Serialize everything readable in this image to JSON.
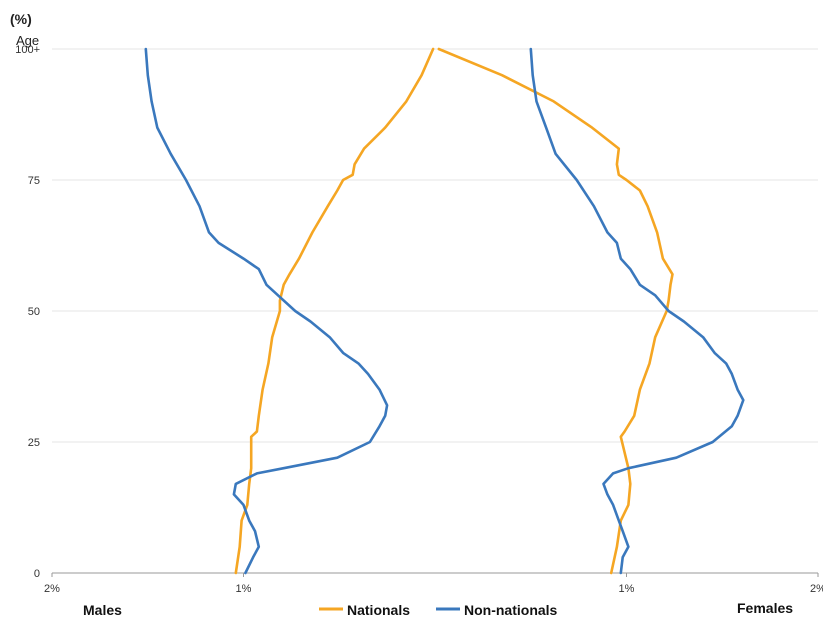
{
  "chart_data": {
    "type": "line",
    "subtype": "population-pyramid",
    "unit_label": "(%)",
    "ylabel": "Age",
    "side_labels": {
      "left": "Males",
      "right": "Females"
    },
    "y_ticks": [
      {
        "value": 0,
        "label": "0"
      },
      {
        "value": 25,
        "label": "25"
      },
      {
        "value": 50,
        "label": "50"
      },
      {
        "value": 75,
        "label": "75"
      },
      {
        "value": 100,
        "label": "100+"
      }
    ],
    "x_ticks": [
      {
        "value": -2,
        "label": "2%"
      },
      {
        "value": -1,
        "label": "1%"
      },
      {
        "value": 1,
        "label": "1%"
      },
      {
        "value": 2,
        "label": "2%"
      }
    ],
    "xlim": [
      -2,
      2
    ],
    "ylim": [
      0,
      100
    ],
    "grid": true,
    "legend_position": "bottom-center",
    "series": [
      {
        "name": "Nationals",
        "color": "#F5A623",
        "ages": [
          0,
          5,
          10,
          13,
          17,
          20,
          26,
          27,
          30,
          35,
          40,
          45,
          50,
          52,
          55,
          57,
          60,
          65,
          70,
          73,
          75,
          76,
          78,
          81,
          85,
          90,
          95,
          100
        ],
        "male": [
          1.04,
          1.02,
          1.01,
          0.98,
          0.97,
          0.96,
          0.96,
          0.93,
          0.92,
          0.9,
          0.87,
          0.85,
          0.81,
          0.81,
          0.79,
          0.76,
          0.71,
          0.64,
          0.56,
          0.51,
          0.48,
          0.43,
          0.42,
          0.37,
          0.26,
          0.15,
          0.07,
          0.01
        ],
        "female": [
          0.92,
          0.95,
          0.97,
          1.01,
          1.02,
          1.01,
          0.97,
          0.99,
          1.04,
          1.07,
          1.12,
          1.15,
          1.21,
          1.22,
          1.23,
          1.24,
          1.19,
          1.16,
          1.11,
          1.07,
          1.0,
          0.96,
          0.95,
          0.96,
          0.82,
          0.62,
          0.35,
          0.02
        ]
      },
      {
        "name": "Non-nationals",
        "color": "#3A78BD",
        "ages": [
          0,
          3,
          5,
          8,
          10,
          13,
          15,
          17,
          19,
          20,
          22,
          25,
          28,
          30,
          32,
          35,
          38,
          40,
          42,
          45,
          48,
          50,
          53,
          55,
          58,
          60,
          63,
          65,
          70,
          75,
          80,
          85,
          90,
          95,
          100
        ],
        "male": [
          0.99,
          0.95,
          0.92,
          0.94,
          0.97,
          1.0,
          1.05,
          1.04,
          0.93,
          0.79,
          0.51,
          0.34,
          0.29,
          0.26,
          0.25,
          0.29,
          0.35,
          0.4,
          0.48,
          0.55,
          0.65,
          0.73,
          0.82,
          0.88,
          0.92,
          1.0,
          1.13,
          1.18,
          1.23,
          1.3,
          1.38,
          1.45,
          1.48,
          1.5,
          1.51
        ]
      },
      {
        "name": "Non-nationals-female",
        "color": "#3A78BD",
        "ages": [
          0,
          3,
          5,
          8,
          10,
          13,
          15,
          17,
          19,
          20,
          22,
          25,
          28,
          30,
          32,
          33,
          35,
          38,
          40,
          42,
          45,
          48,
          50,
          53,
          55,
          58,
          60,
          63,
          65,
          70,
          75,
          80,
          85,
          90,
          95,
          100
        ],
        "female": [
          0.97,
          0.98,
          1.01,
          0.98,
          0.96,
          0.93,
          0.9,
          0.88,
          0.93,
          1.01,
          1.26,
          1.45,
          1.55,
          1.58,
          1.6,
          1.61,
          1.58,
          1.55,
          1.52,
          1.46,
          1.4,
          1.3,
          1.22,
          1.15,
          1.07,
          1.02,
          0.97,
          0.95,
          0.9,
          0.83,
          0.74,
          0.63,
          0.58,
          0.53,
          0.51,
          0.5
        ]
      }
    ],
    "legend": [
      {
        "label": "Nationals",
        "color": "#F5A623"
      },
      {
        "label": "Non-nationals",
        "color": "#3A78BD"
      }
    ]
  }
}
